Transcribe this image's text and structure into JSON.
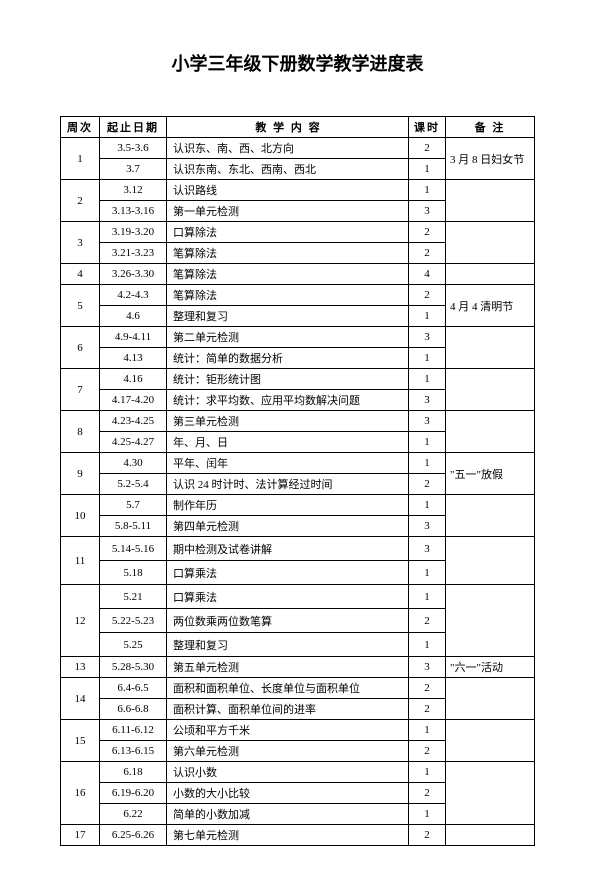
{
  "title": "小学三年级下册数学教学进度表",
  "headers": {
    "week": "周次",
    "date": "起止日期",
    "content": "教 学 内 容",
    "hours": "课时",
    "notes": "备 注"
  },
  "rows": [
    {
      "week": "1",
      "date": "3.5-3.6",
      "content": "认识东、南、西、北方向",
      "hours": "2",
      "notes": "3 月 8 日妇女节",
      "weekRowspan": 2,
      "notesRowspan": 2
    },
    {
      "date": "3.7",
      "content": "认识东南、东北、西南、西北",
      "hours": "1"
    },
    {
      "week": "2",
      "date": "3.12",
      "content": "认识路线",
      "hours": "1",
      "weekRowspan": 2,
      "notesRowspan": 2,
      "notes": ""
    },
    {
      "date": "3.13-3.16",
      "content": "第一单元检测",
      "hours": "3"
    },
    {
      "week": "3",
      "date": "3.19-3.20",
      "content": "口算除法",
      "hours": "2",
      "weekRowspan": 2,
      "notesRowspan": 2,
      "notes": ""
    },
    {
      "date": "3.21-3.23",
      "content": "笔算除法",
      "hours": "2"
    },
    {
      "week": "4",
      "date": "3.26-3.30",
      "content": "笔算除法",
      "hours": "4",
      "weekRowspan": 1,
      "notesRowspan": 1,
      "notes": ""
    },
    {
      "week": "5",
      "date": "4.2-4.3",
      "content": "笔算除法",
      "hours": "2",
      "weekRowspan": 2,
      "notesRowspan": 2,
      "notes": "4 月 4 清明节"
    },
    {
      "date": "4.6",
      "content": "整理和复习",
      "hours": "1"
    },
    {
      "week": "6",
      "date": "4.9-4.11",
      "content": "第二单元检测",
      "hours": "3",
      "weekRowspan": 2,
      "notesRowspan": 2,
      "notes": ""
    },
    {
      "date": "4.13",
      "content": "统计：简单的数据分析",
      "hours": "1"
    },
    {
      "week": "7",
      "date": "4.16",
      "content": "统计：钜形统计图",
      "hours": "1",
      "weekRowspan": 2,
      "notesRowspan": 2,
      "notes": ""
    },
    {
      "date": "4.17-4.20",
      "content": "统计：求平均数、应用平均数解决问题",
      "hours": "3"
    },
    {
      "week": "8",
      "date": "4.23-4.25",
      "content": "第三单元检测",
      "hours": "3",
      "weekRowspan": 2,
      "notesRowspan": 2,
      "notes": ""
    },
    {
      "date": "4.25-4.27",
      "content": "年、月、日",
      "hours": "1"
    },
    {
      "week": "9",
      "date": "4.30",
      "content": "平年、闰年",
      "hours": "1",
      "weekRowspan": 2,
      "notesRowspan": 2,
      "notes": "\"五一\"放假"
    },
    {
      "date": "5.2-5.4",
      "content": "认识 24 时计时、法计算经过时间",
      "hours": "2"
    },
    {
      "week": "10",
      "date": "5.7",
      "content": "制作年历",
      "hours": "1",
      "weekRowspan": 2,
      "notesRowspan": 2,
      "notes": ""
    },
    {
      "date": "5.8-5.11",
      "content": "第四单元检测",
      "hours": "3"
    },
    {
      "week": "11",
      "date": "5.14-5.16",
      "content": "期中检测及试卷讲解",
      "hours": "3",
      "weekRowspan": 2,
      "notesRowspan": 2,
      "notes": "",
      "tall": true
    },
    {
      "date": "5.18",
      "content": "口算乘法",
      "hours": "1",
      "tall": true
    },
    {
      "week": "12",
      "date": "5.21",
      "content": "口算乘法",
      "hours": "1",
      "weekRowspan": 3,
      "notesRowspan": 3,
      "notes": "",
      "tall": true
    },
    {
      "date": "5.22-5.23",
      "content": "两位数乘两位数笔算",
      "hours": "2",
      "tall": true
    },
    {
      "date": "5.25",
      "content": "整理和复习",
      "hours": "1",
      "tall": true
    },
    {
      "week": "13",
      "date": "5.28-5.30",
      "content": "第五单元检测",
      "hours": "3",
      "weekRowspan": 1,
      "notesRowspan": 1,
      "notes": "\"六一\"活动"
    },
    {
      "week": "14",
      "date": "6.4-6.5",
      "content": "面积和面积单位、长度单位与面积单位",
      "hours": "2",
      "weekRowspan": 2,
      "notesRowspan": 2,
      "notes": ""
    },
    {
      "date": "6.6-6.8",
      "content": "面积计算、面积单位间的进率",
      "hours": "2"
    },
    {
      "week": "15",
      "date": "6.11-6.12",
      "content": "公顷和平方千米",
      "hours": "1",
      "weekRowspan": 2,
      "notesRowspan": 2,
      "notes": ""
    },
    {
      "date": "6.13-6.15",
      "content": "第六单元检测",
      "hours": "2"
    },
    {
      "week": "16",
      "date": "6.18",
      "content": "认识小数",
      "hours": "1",
      "weekRowspan": 3,
      "notesRowspan": 3,
      "notes": ""
    },
    {
      "date": "6.19-6.20",
      "content": "小数的大小比较",
      "hours": "2"
    },
    {
      "date": "6.22",
      "content": "简单的小数加减",
      "hours": "1"
    },
    {
      "week": "17",
      "date": "6.25-6.26",
      "content": "第七单元检测",
      "hours": "2",
      "weekRowspan": 1,
      "notesRowspan": 1,
      "notes": ""
    }
  ]
}
